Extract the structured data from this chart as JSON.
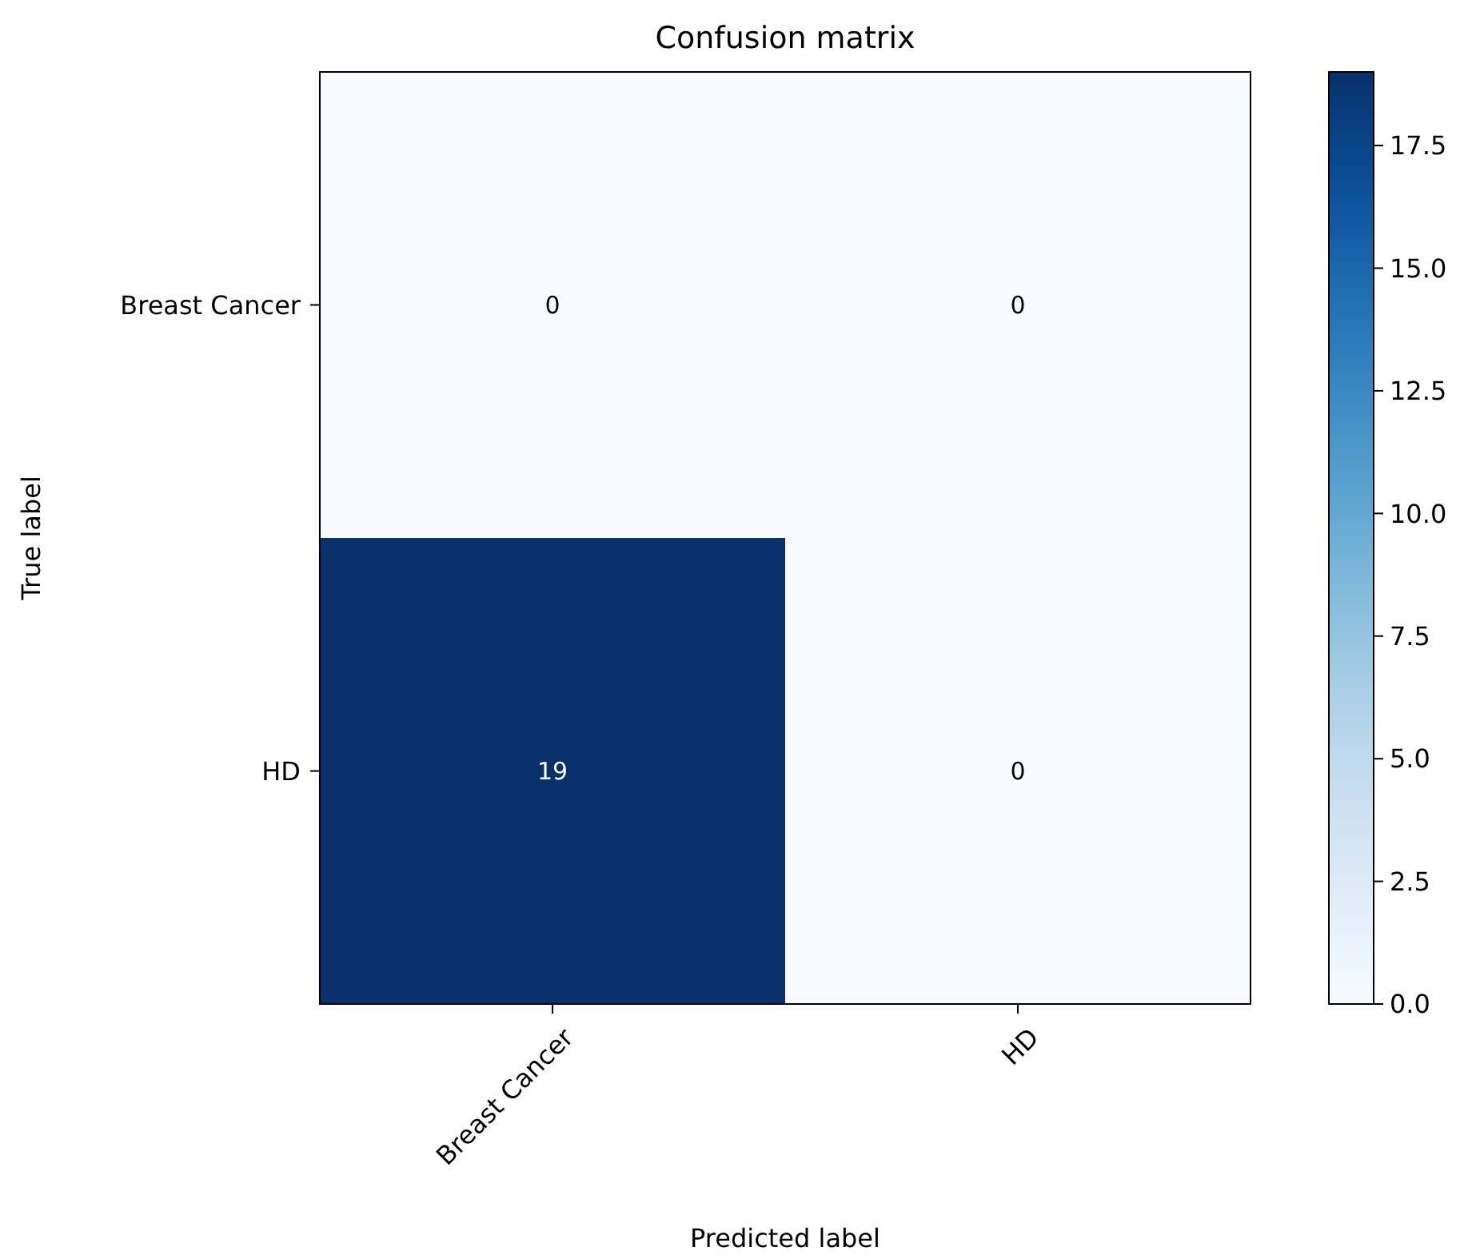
{
  "chart_data": {
    "type": "heatmap",
    "title": "Confusion matrix",
    "xlabel": "Predicted label",
    "ylabel": "True label",
    "categories": [
      "Breast Cancer",
      "HD"
    ],
    "y_categories": [
      "Breast Cancer",
      "HD"
    ],
    "cells": [
      [
        0,
        0
      ],
      [
        19,
        0
      ]
    ],
    "data_labels": true,
    "clim": [
      0,
      19
    ],
    "cticks": [
      {
        "value": 0,
        "label": "0.0"
      },
      {
        "value": 2.5,
        "label": "2.5"
      },
      {
        "value": 5,
        "label": "5.0"
      },
      {
        "value": 7.5,
        "label": "7.5"
      },
      {
        "value": 10,
        "label": "10.0"
      },
      {
        "value": 12.5,
        "label": "12.5"
      },
      {
        "value": 15,
        "label": "15.0"
      },
      {
        "value": 17.5,
        "label": "17.5"
      }
    ]
  }
}
